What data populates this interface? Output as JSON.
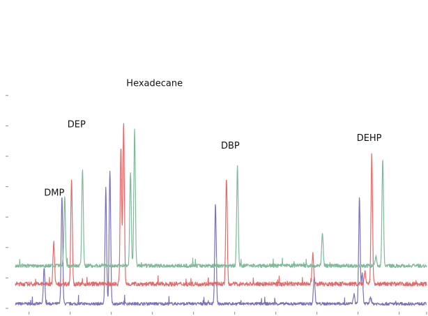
{
  "chart_data": {
    "type": "line",
    "title": "",
    "xlabel": "",
    "ylabel": "",
    "xlim": [
      0,
      30
    ],
    "ylim": [
      0,
      100
    ],
    "grid": false,
    "legend": "none",
    "x_ticks": [
      1,
      4,
      7,
      10,
      13,
      16,
      19,
      22,
      25,
      28,
      30
    ],
    "y_ticks": [
      0,
      10,
      20,
      30,
      40,
      50,
      60,
      70
    ],
    "series": [
      {
        "color": "#7a72b6",
        "baseline": 1.5,
        "noise": 0.5,
        "peaks": [
          {
            "x": 2.1,
            "h": 12
          },
          {
            "x": 3.4,
            "h": 35.5
          },
          {
            "x": 6.6,
            "h": 38
          },
          {
            "x": 6.9,
            "h": 44
          },
          {
            "x": 14.6,
            "h": 33
          },
          {
            "x": 21.8,
            "h": 9
          },
          {
            "x": 24.7,
            "h": 3
          },
          {
            "x": 25.1,
            "h": 35
          },
          {
            "x": 25.3,
            "h": 10
          },
          {
            "x": 25.9,
            "h": 2
          }
        ]
      },
      {
        "color": "#e36a6a",
        "baseline": 8,
        "noise": 0.7,
        "peaks": [
          {
            "x": 2.8,
            "h": 14
          },
          {
            "x": 4.1,
            "h": 35
          },
          {
            "x": 7.7,
            "h": 45
          },
          {
            "x": 7.9,
            "h": 53
          },
          {
            "x": 15.4,
            "h": 35
          },
          {
            "x": 21.7,
            "h": 10
          },
          {
            "x": 25.5,
            "h": 4
          },
          {
            "x": 26.0,
            "h": 43
          }
        ]
      },
      {
        "color": "#7fb99a",
        "baseline": 14,
        "noise": 0.6,
        "peaks": [
          {
            "x": 3.6,
            "h": 23
          },
          {
            "x": 4.9,
            "h": 32
          },
          {
            "x": 8.4,
            "h": 31
          },
          {
            "x": 8.7,
            "h": 45
          },
          {
            "x": 16.2,
            "h": 33
          },
          {
            "x": 22.4,
            "h": 11
          },
          {
            "x": 26.3,
            "h": 3
          },
          {
            "x": 26.8,
            "h": 35.5
          }
        ]
      }
    ],
    "annotations": [
      {
        "text": "DMP",
        "x": 2.1,
        "y": 37
      },
      {
        "text": "DEP",
        "x": 3.8,
        "y": 59.5
      },
      {
        "text": "Hexadecane",
        "x": 8.1,
        "y": 73
      },
      {
        "text": "DBP",
        "x": 15.0,
        "y": 52.5
      },
      {
        "text": "DEHP",
        "x": 24.9,
        "y": 55
      }
    ]
  }
}
